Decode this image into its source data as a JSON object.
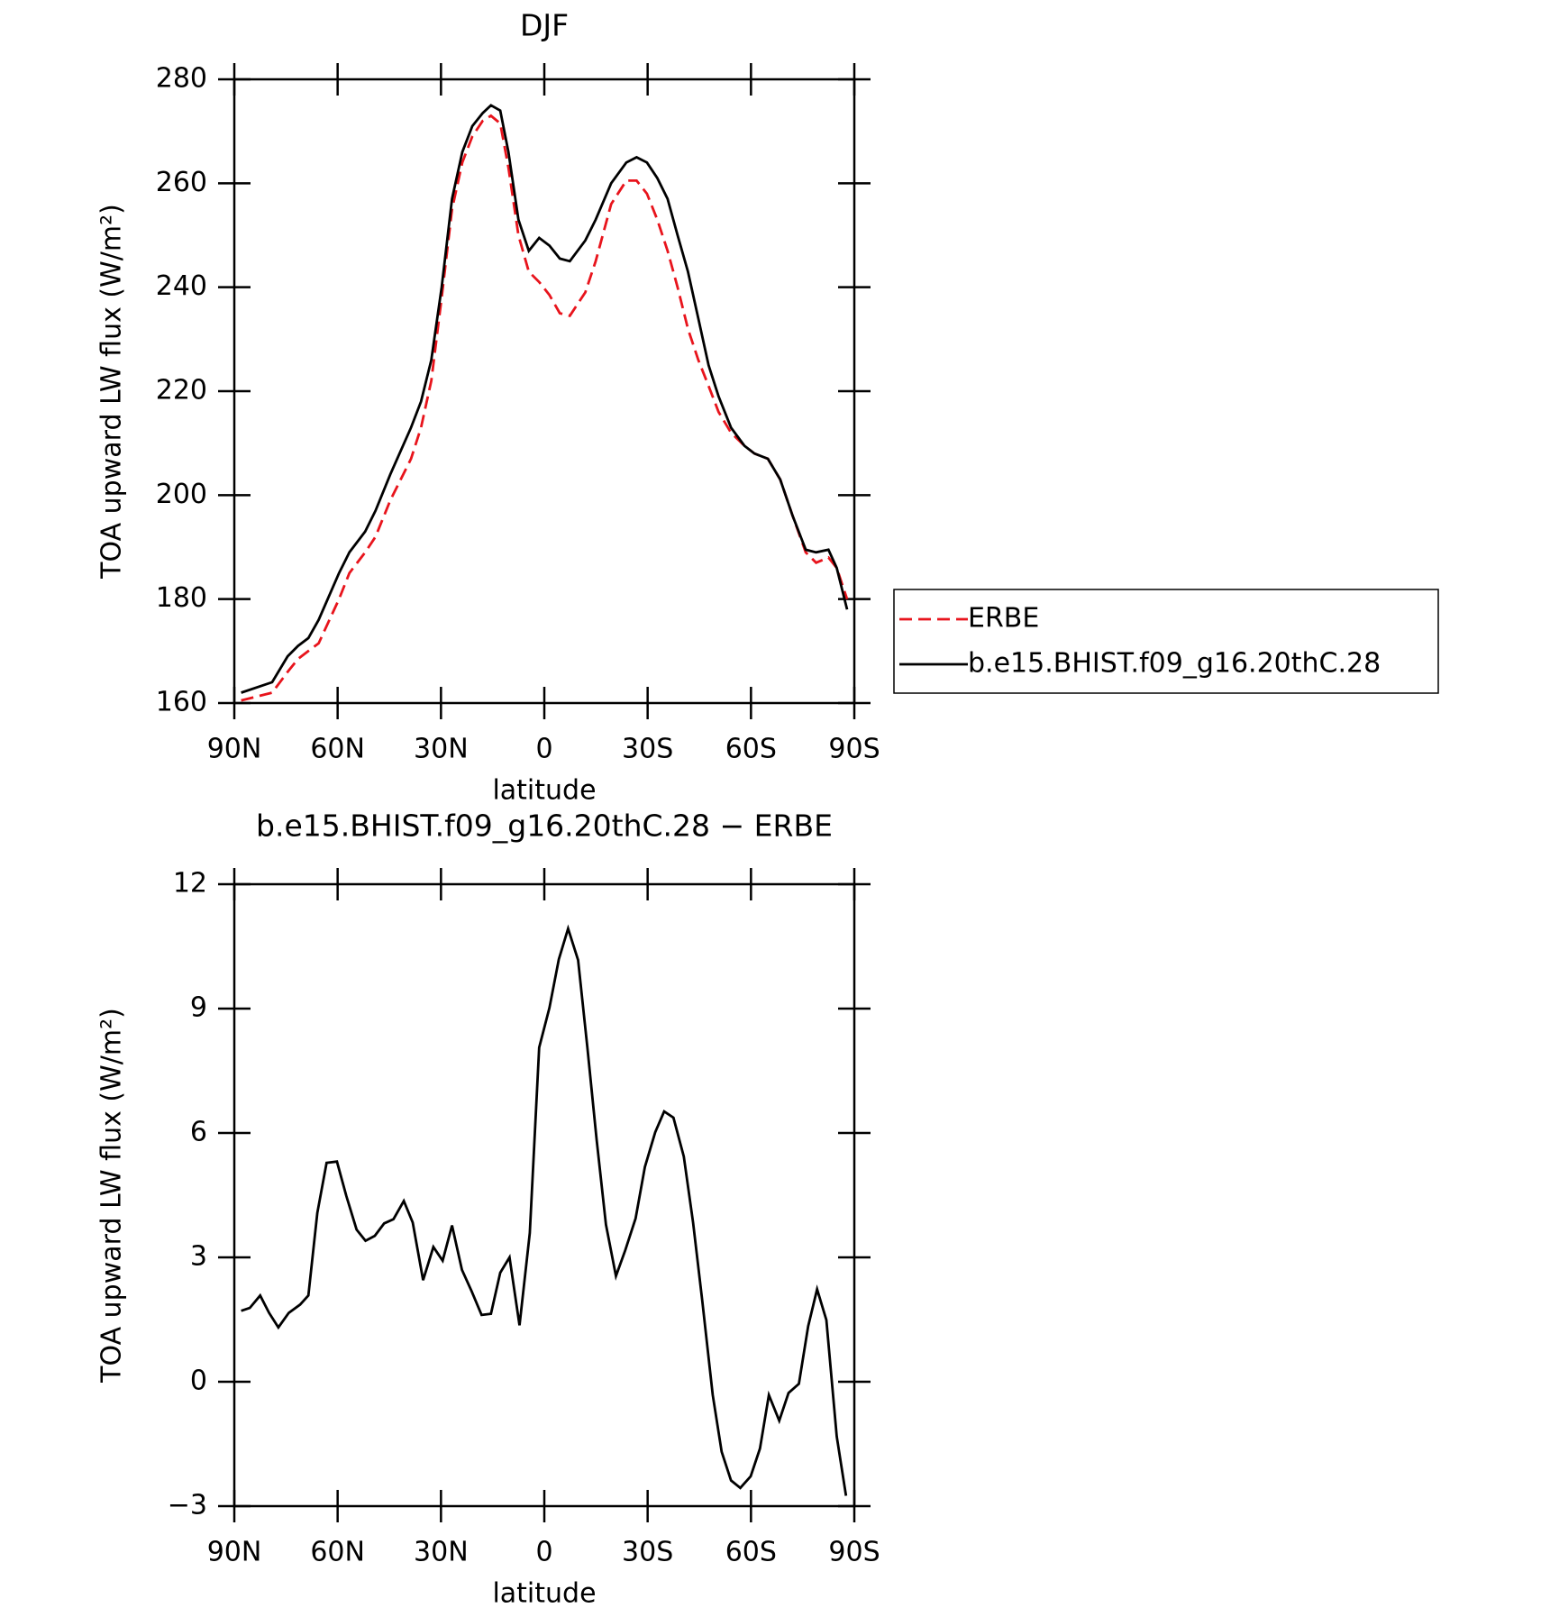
{
  "chart_data": [
    {
      "type": "line",
      "title": "DJF",
      "x_label": "latitude",
      "y_label": "TOA upward LW flux (W/m²)",
      "x": [
        88,
        79,
        74.5,
        71.5,
        68.5,
        65.5,
        59.6,
        56.6,
        52,
        49,
        44.7,
        38.7,
        35.8,
        32.8,
        29.8,
        26.8,
        23.8,
        20.9,
        17.9,
        15.5,
        12.8,
        10.4,
        7.5,
        4.5,
        1.5,
        -1.5,
        -4.5,
        -7.4,
        -11.9,
        -14.9,
        -19.4,
        -23.8,
        -26.8,
        -29.8,
        -32.8,
        -35.8,
        -38.7,
        -41.7,
        -44.7,
        -47.7,
        -50.6,
        -54.2,
        -58.1,
        -61,
        -64.9,
        -68.5,
        -72.1,
        -75.9,
        -78.9,
        -82.5,
        -84.9,
        -87.9
      ],
      "series": [
        {
          "name": "ERBE",
          "color": "#e8141c",
          "line_style": "dashed",
          "values": [
            160.5,
            162,
            166,
            168.5,
            170,
            171.5,
            180,
            185,
            189,
            192,
            199,
            207,
            213,
            222,
            238,
            255,
            264,
            269,
            272,
            273,
            271.5,
            263,
            250,
            243,
            241,
            238.5,
            235,
            234.5,
            239,
            245,
            256,
            260.5,
            260.5,
            258,
            253,
            247,
            240,
            232,
            226,
            221,
            216,
            212,
            209.5,
            208,
            207,
            203,
            196,
            189,
            187,
            188,
            186,
            180
          ]
        },
        {
          "name": "b.e15.BHIST.f09_g16.20thC.28",
          "color": "#000000",
          "line_style": "solid",
          "values": [
            162,
            164,
            169,
            171,
            172.5,
            176,
            185,
            189,
            193,
            197,
            204,
            213,
            218,
            226,
            240,
            257,
            266,
            271,
            273.5,
            275,
            274,
            266,
            253,
            247,
            249.5,
            248,
            245.5,
            245,
            249,
            253,
            260,
            264,
            265,
            264,
            261,
            257,
            250,
            243,
            234,
            225,
            219,
            213,
            209.5,
            208,
            207,
            203,
            196,
            189.5,
            189,
            189.5,
            186,
            178
          ]
        }
      ],
      "xlim": [
        90,
        -90
      ],
      "xticks": [
        {
          "value": 90,
          "label": "90N"
        },
        {
          "value": 60,
          "label": "60N"
        },
        {
          "value": 30,
          "label": "30N"
        },
        0,
        {
          "value": -30,
          "label": "30S"
        },
        {
          "value": -60,
          "label": "60S"
        },
        {
          "value": -90,
          "label": "90S"
        }
      ],
      "ylim": [
        160,
        280
      ],
      "yticks": [
        160,
        180,
        200,
        220,
        240,
        260,
        280
      ],
      "legend": "right"
    },
    {
      "type": "line",
      "title": "b.e15.BHIST.f09_g16.20thC.28 − ERBE",
      "x_label": "latitude",
      "y_label": "TOA upward LW flux (W/m²)",
      "x": [
        88,
        85.5,
        82.5,
        79.9,
        77.2,
        74.2,
        70.9,
        68.5,
        65.9,
        63.2,
        60.2,
        57.5,
        54.5,
        51.9,
        49.2,
        46.5,
        43.8,
        40.8,
        38.2,
        35.2,
        32.2,
        29.5,
        26.8,
        23.9,
        21.1,
        18.2,
        15.5,
        12.8,
        10.1,
        7.2,
        4.2,
        1.5,
        -1.5,
        -4.2,
        -6.9,
        -9.8,
        -12.5,
        -15.2,
        -17.9,
        -20.8,
        -23.5,
        -26.5,
        -29.2,
        -32.2,
        -34.8,
        -37.5,
        -40.5,
        -43.2,
        -45.9,
        -48.9,
        -51.5,
        -54.2,
        -56.9,
        -59.9,
        -62.6,
        -65.2,
        -68.2,
        -70.9,
        -73.9,
        -76.6,
        -79.2,
        -81.9,
        -84.9,
        -87.6
      ],
      "values": [
        1.71,
        1.78,
        2.08,
        1.66,
        1.31,
        1.66,
        1.86,
        2.08,
        4.07,
        5.28,
        5.31,
        4.49,
        3.67,
        3.4,
        3.52,
        3.82,
        3.92,
        4.36,
        3.84,
        2.45,
        3.25,
        2.92,
        3.77,
        2.7,
        2.18,
        1.61,
        1.64,
        2.63,
        3,
        1.36,
        3.59,
        8.06,
        9.02,
        10.19,
        10.93,
        10.17,
        8.06,
        5.83,
        3.79,
        2.55,
        3.17,
        3.94,
        5.18,
        6.02,
        6.52,
        6.37,
        5.43,
        3.84,
        1.93,
        -0.32,
        -1.69,
        -2.38,
        -2.56,
        -2.28,
        -1.61,
        -0.32,
        -0.94,
        -0.27,
        -0.05,
        1.34,
        2.23,
        1.49,
        -1.32,
        -2.75
      ],
      "color": "#000000",
      "xlim": [
        90,
        -90
      ],
      "xticks": [
        {
          "value": 90,
          "label": "90N"
        },
        {
          "value": 60,
          "label": "60N"
        },
        {
          "value": 30,
          "label": "30N"
        },
        0,
        {
          "value": -30,
          "label": "30S"
        },
        {
          "value": -60,
          "label": "60S"
        },
        {
          "value": -90,
          "label": "90S"
        }
      ],
      "ylim": [
        -3,
        12
      ],
      "yticks": [
        {
          "value": -3,
          "label": "−3"
        },
        0,
        3,
        6,
        9,
        12
      ]
    }
  ]
}
